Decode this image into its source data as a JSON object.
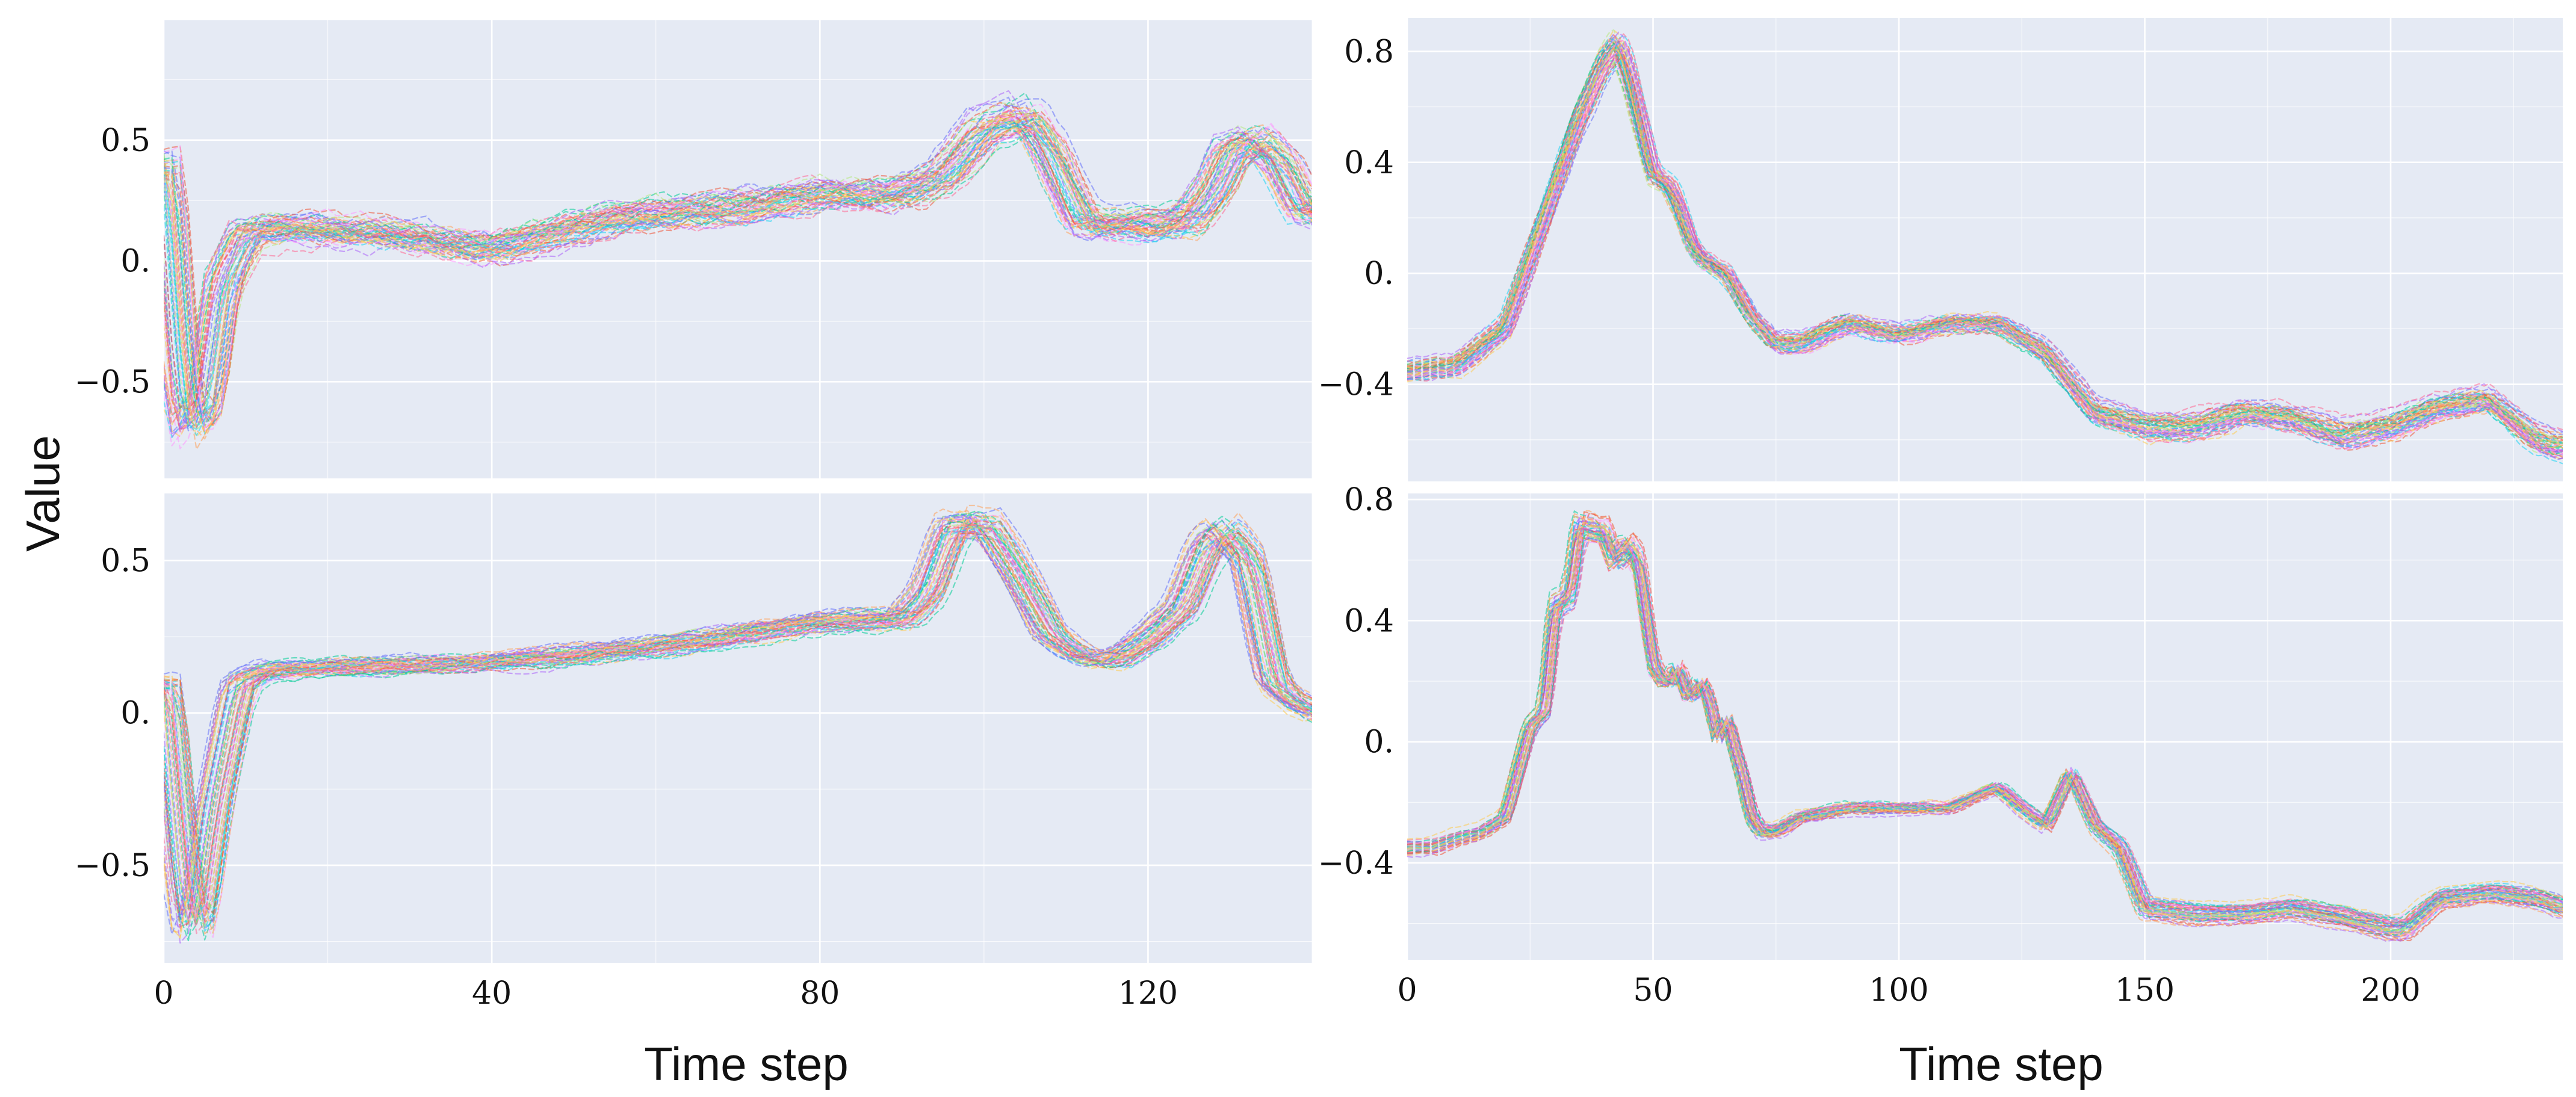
{
  "figure": {
    "ylabel": "Value",
    "xlabel_left": "Time step",
    "xlabel_right": "Time step"
  },
  "palette": [
    "#636efa",
    "#ef553b",
    "#00cc96",
    "#ab63fa",
    "#ffa15a",
    "#19d3f3",
    "#ff6692",
    "#b6e880",
    "#ff97ff",
    "#fecb52"
  ],
  "chart_data": [
    {
      "id": "top-left",
      "type": "line",
      "xlim": [
        0,
        140
      ],
      "ylim": [
        -0.9,
        1.0
      ],
      "yticks": [
        -0.5,
        0,
        0.5
      ],
      "ytick_labels": [
        "−0.5",
        "0.",
        "0.5"
      ],
      "xticks": [
        0,
        40,
        80,
        120
      ],
      "xtick_labels": [],
      "grid": true,
      "n_series": 60,
      "noise": 0.07,
      "x": [
        0,
        2,
        3,
        5,
        7,
        10,
        15,
        25,
        40,
        55,
        70,
        80,
        90,
        95,
        100,
        105,
        108,
        112,
        115,
        120,
        125,
        128,
        130,
        133,
        136,
        139
      ],
      "y": [
        0.4,
        -0.5,
        -0.7,
        -0.6,
        -0.1,
        0.12,
        0.14,
        0.12,
        0.05,
        0.18,
        0.22,
        0.28,
        0.28,
        0.35,
        0.55,
        0.6,
        0.45,
        0.15,
        0.15,
        0.15,
        0.17,
        0.3,
        0.45,
        0.5,
        0.4,
        0.2
      ]
    },
    {
      "id": "bottom-left",
      "type": "line",
      "xlim": [
        0,
        140
      ],
      "ylim": [
        -0.82,
        0.72
      ],
      "yticks": [
        -0.5,
        0,
        0.5
      ],
      "ytick_labels": [
        "−0.5",
        "0.",
        "0.5"
      ],
      "xticks": [
        0,
        40,
        80,
        120
      ],
      "xtick_labels": [
        "0",
        "40",
        "80",
        "120"
      ],
      "grid": true,
      "n_series": 60,
      "noise": 0.03,
      "x": [
        0,
        2,
        3,
        4,
        6,
        9,
        12,
        20,
        40,
        60,
        80,
        90,
        93,
        96,
        100,
        104,
        108,
        112,
        116,
        120,
        124,
        127,
        129,
        132,
        135,
        137,
        140
      ],
      "y": [
        0.1,
        -0.5,
        -0.7,
        -0.68,
        -0.3,
        0.1,
        0.14,
        0.15,
        0.17,
        0.22,
        0.3,
        0.31,
        0.4,
        0.62,
        0.62,
        0.45,
        0.25,
        0.18,
        0.18,
        0.25,
        0.35,
        0.55,
        0.6,
        0.5,
        0.1,
        0.05,
        0.0
      ]
    },
    {
      "id": "top-right",
      "type": "line",
      "xlim": [
        0,
        235
      ],
      "ylim": [
        -0.75,
        0.92
      ],
      "yticks": [
        -0.4,
        0,
        0.4,
        0.8
      ],
      "ytick_labels": [
        "−0.4",
        "0.",
        "0.4",
        "0.8"
      ],
      "xticks": [
        0,
        50,
        100,
        150,
        200
      ],
      "xtick_labels": [],
      "grid": true,
      "n_series": 60,
      "noise": 0.03,
      "x": [
        0,
        10,
        20,
        25,
        30,
        35,
        40,
        43,
        45,
        48,
        50,
        53,
        55,
        58,
        60,
        65,
        70,
        75,
        80,
        90,
        100,
        110,
        120,
        130,
        140,
        145,
        150,
        160,
        170,
        180,
        190,
        200,
        210,
        220,
        230,
        235
      ],
      "y": [
        -0.35,
        -0.33,
        -0.2,
        0.05,
        0.3,
        0.55,
        0.75,
        0.82,
        0.72,
        0.5,
        0.35,
        0.32,
        0.25,
        0.1,
        0.05,
        0.0,
        -0.15,
        -0.25,
        -0.25,
        -0.18,
        -0.22,
        -0.18,
        -0.18,
        -0.28,
        -0.5,
        -0.52,
        -0.55,
        -0.55,
        -0.5,
        -0.52,
        -0.58,
        -0.55,
        -0.48,
        -0.45,
        -0.6,
        -0.62
      ]
    },
    {
      "id": "bottom-right",
      "type": "line",
      "xlim": [
        0,
        235
      ],
      "ylim": [
        -0.72,
        0.82
      ],
      "yticks": [
        -0.4,
        0,
        0.4,
        0.8
      ],
      "ytick_labels": [
        "−0.4",
        "0.",
        "0.4",
        "0.8"
      ],
      "xticks": [
        0,
        50,
        100,
        150,
        200
      ],
      "xtick_labels": [
        "0",
        "50",
        "100",
        "150",
        "200"
      ],
      "grid": true,
      "n_series": 60,
      "noise": 0.015,
      "x": [
        0,
        5,
        10,
        15,
        20,
        25,
        28,
        30,
        33,
        35,
        38,
        40,
        42,
        45,
        47,
        50,
        52,
        54,
        55,
        57,
        58,
        60,
        62,
        63,
        65,
        67,
        68,
        70,
        72,
        75,
        80,
        90,
        100,
        110,
        120,
        125,
        130,
        135,
        140,
        145,
        150,
        160,
        170,
        180,
        190,
        200,
        203,
        210,
        220,
        230,
        235
      ],
      "y": [
        -0.35,
        -0.35,
        -0.32,
        -0.3,
        -0.25,
        0.05,
        0.1,
        0.45,
        0.48,
        0.72,
        0.7,
        0.7,
        0.6,
        0.65,
        0.6,
        0.25,
        0.2,
        0.2,
        0.25,
        0.15,
        0.15,
        0.2,
        0.1,
        0.0,
        0.08,
        -0.05,
        -0.1,
        -0.25,
        -0.3,
        -0.3,
        -0.25,
        -0.22,
        -0.22,
        -0.22,
        -0.15,
        -0.22,
        -0.28,
        -0.1,
        -0.28,
        -0.35,
        -0.55,
        -0.57,
        -0.57,
        -0.55,
        -0.58,
        -0.62,
        -0.62,
        -0.52,
        -0.5,
        -0.52,
        -0.55
      ]
    }
  ]
}
